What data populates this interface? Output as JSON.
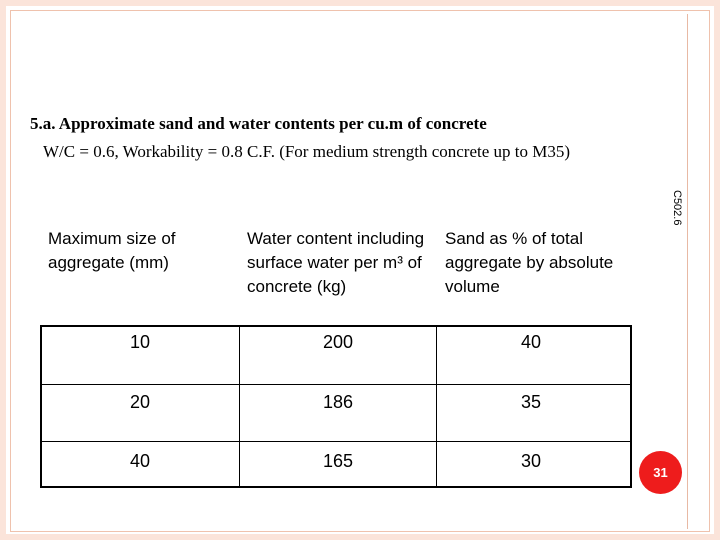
{
  "slide": {
    "title_line1": "5.a.  Approximate sand and water contents per cu.m of concrete",
    "title_line2": "W/C = 0.6, Workability = 0.8 C.F. (For medium strength concrete up to M35)",
    "side_code": "C502.6",
    "page_number": "31"
  },
  "table": {
    "headers": [
      "Maximum size of aggregate (mm)",
      "Water content including surface water per m³ of concrete (kg)",
      "Sand as % of total aggregate by absolute volume"
    ],
    "rows": [
      [
        "10",
        "200",
        "40"
      ],
      [
        "20",
        "186",
        "35"
      ],
      [
        "40",
        "165",
        "30"
      ]
    ]
  }
}
